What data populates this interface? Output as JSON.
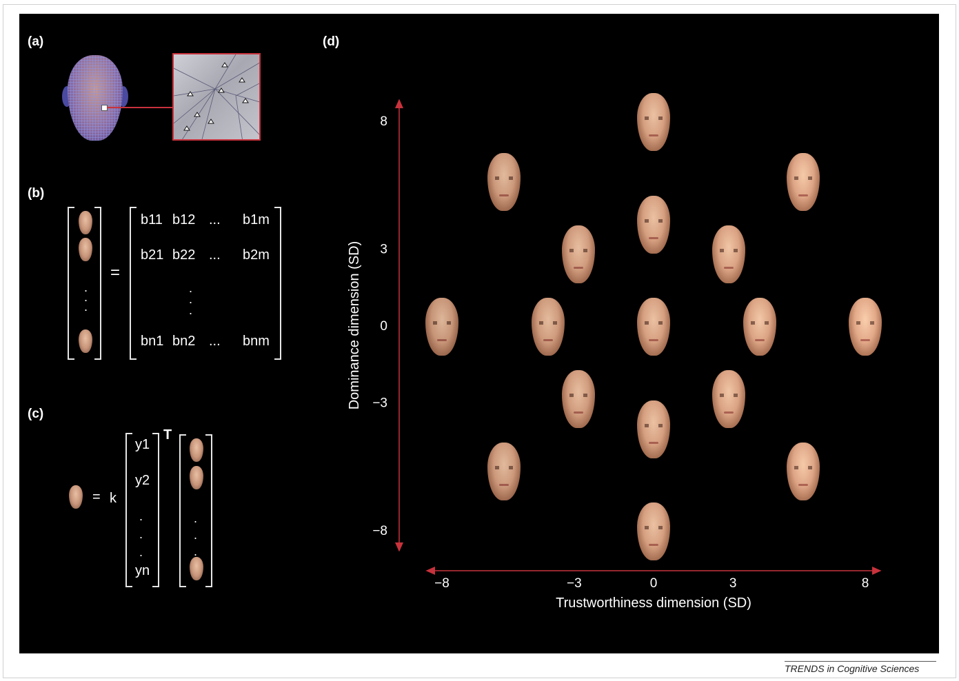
{
  "panels": {
    "a": "(a)",
    "b": "(b)",
    "c": "(c)",
    "d": "(d)"
  },
  "matrix_b": {
    "row1": [
      "b11",
      "b12",
      "...",
      "b1m"
    ],
    "row2": [
      "b21",
      "b22",
      "...",
      "b2m"
    ],
    "rown": [
      "bn1",
      "bn2",
      "...",
      "bnm"
    ],
    "equals": "="
  },
  "equation_c": {
    "equals": "=",
    "k": "k",
    "transpose": "T",
    "vector": [
      "y1",
      "y2",
      "yn"
    ]
  },
  "chart_data": {
    "type": "scatter",
    "xlabel": "Trustworthiness dimension (SD)",
    "ylabel": "Dominance dimension (SD)",
    "xlim": [
      -8,
      8
    ],
    "ylim": [
      -8,
      8
    ],
    "x_ticks": [
      "−8",
      "−3",
      "0",
      "3",
      "8"
    ],
    "y_ticks": [
      "8",
      "3",
      "0",
      "−3",
      "−8"
    ],
    "axis_color": "#c8323c",
    "points": [
      {
        "x": 0,
        "y": 8
      },
      {
        "x": -5.66,
        "y": 5.66
      },
      {
        "x": 5.66,
        "y": 5.66
      },
      {
        "x": 0,
        "y": 4
      },
      {
        "x": -2.83,
        "y": 2.83
      },
      {
        "x": 2.83,
        "y": 2.83
      },
      {
        "x": -8,
        "y": 0
      },
      {
        "x": -4,
        "y": 0
      },
      {
        "x": 0,
        "y": 0
      },
      {
        "x": 4,
        "y": 0
      },
      {
        "x": 8,
        "y": 0
      },
      {
        "x": -2.83,
        "y": -2.83
      },
      {
        "x": 2.83,
        "y": -2.83
      },
      {
        "x": 0,
        "y": -4
      },
      {
        "x": -5.66,
        "y": -5.66
      },
      {
        "x": 5.66,
        "y": -5.66
      },
      {
        "x": 0,
        "y": -8
      }
    ]
  },
  "footer": "TRENDS in Cognitive Sciences"
}
